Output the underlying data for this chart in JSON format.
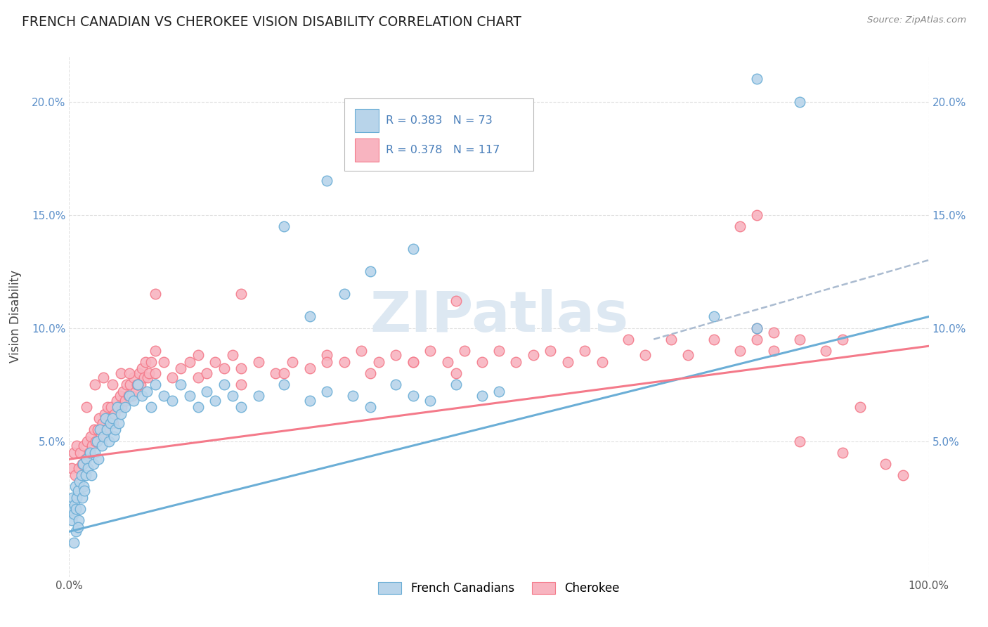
{
  "title": "FRENCH CANADIAN VS CHEROKEE VISION DISABILITY CORRELATION CHART",
  "source": "Source: ZipAtlas.com",
  "ylabel": "Vision Disability",
  "xlim": [
    0,
    100
  ],
  "ylim": [
    -1,
    22
  ],
  "ytick_vals": [
    5,
    10,
    15,
    20
  ],
  "ytick_labels": [
    "5.0%",
    "10.0%",
    "15.0%",
    "20.0%"
  ],
  "color_blue_fill": "#b8d4ea",
  "color_blue_edge": "#6baed6",
  "color_pink_fill": "#f8b4c0",
  "color_pink_edge": "#f47a8a",
  "watermark": "ZIPatlas",
  "blue_line_x": [
    0,
    100
  ],
  "blue_line_y": [
    1.0,
    10.5
  ],
  "pink_line_x": [
    0,
    100
  ],
  "pink_line_y": [
    4.2,
    9.2
  ],
  "dashed_line_x": [
    68,
    100
  ],
  "dashed_line_y": [
    9.5,
    13.0
  ],
  "french_canadian_points": [
    [
      0.2,
      2.0
    ],
    [
      0.3,
      1.5
    ],
    [
      0.4,
      2.5
    ],
    [
      0.5,
      1.8
    ],
    [
      0.6,
      2.2
    ],
    [
      0.7,
      3.0
    ],
    [
      0.8,
      2.0
    ],
    [
      0.9,
      2.5
    ],
    [
      1.0,
      2.8
    ],
    [
      1.1,
      1.5
    ],
    [
      1.2,
      3.2
    ],
    [
      1.3,
      2.0
    ],
    [
      1.4,
      3.5
    ],
    [
      1.5,
      2.5
    ],
    [
      1.6,
      4.0
    ],
    [
      1.7,
      3.0
    ],
    [
      1.8,
      2.8
    ],
    [
      1.9,
      3.5
    ],
    [
      2.0,
      4.2
    ],
    [
      2.2,
      3.8
    ],
    [
      2.4,
      4.5
    ],
    [
      2.6,
      3.5
    ],
    [
      2.8,
      4.0
    ],
    [
      3.0,
      4.5
    ],
    [
      3.2,
      5.0
    ],
    [
      3.4,
      4.2
    ],
    [
      3.6,
      5.5
    ],
    [
      3.8,
      4.8
    ],
    [
      4.0,
      5.2
    ],
    [
      4.2,
      6.0
    ],
    [
      4.4,
      5.5
    ],
    [
      4.6,
      5.0
    ],
    [
      4.8,
      5.8
    ],
    [
      5.0,
      6.0
    ],
    [
      5.2,
      5.2
    ],
    [
      5.4,
      5.5
    ],
    [
      5.6,
      6.5
    ],
    [
      5.8,
      5.8
    ],
    [
      6.0,
      6.2
    ],
    [
      6.5,
      6.5
    ],
    [
      7.0,
      7.0
    ],
    [
      7.5,
      6.8
    ],
    [
      8.0,
      7.5
    ],
    [
      8.5,
      7.0
    ],
    [
      9.0,
      7.2
    ],
    [
      9.5,
      6.5
    ],
    [
      10.0,
      7.5
    ],
    [
      11.0,
      7.0
    ],
    [
      12.0,
      6.8
    ],
    [
      13.0,
      7.5
    ],
    [
      14.0,
      7.0
    ],
    [
      15.0,
      6.5
    ],
    [
      16.0,
      7.2
    ],
    [
      17.0,
      6.8
    ],
    [
      18.0,
      7.5
    ],
    [
      19.0,
      7.0
    ],
    [
      20.0,
      6.5
    ],
    [
      22.0,
      7.0
    ],
    [
      25.0,
      7.5
    ],
    [
      28.0,
      6.8
    ],
    [
      30.0,
      7.2
    ],
    [
      33.0,
      7.0
    ],
    [
      35.0,
      6.5
    ],
    [
      38.0,
      7.5
    ],
    [
      40.0,
      7.0
    ],
    [
      42.0,
      6.8
    ],
    [
      45.0,
      7.5
    ],
    [
      48.0,
      7.0
    ],
    [
      50.0,
      7.2
    ],
    [
      28.0,
      10.5
    ],
    [
      32.0,
      11.5
    ],
    [
      35.0,
      12.5
    ],
    [
      40.0,
      13.5
    ],
    [
      25.0,
      14.5
    ],
    [
      30.0,
      16.5
    ],
    [
      80.0,
      21.0
    ],
    [
      85.0,
      20.0
    ],
    [
      75.0,
      10.5
    ],
    [
      80.0,
      10.0
    ],
    [
      0.5,
      0.5
    ],
    [
      0.8,
      1.0
    ],
    [
      1.0,
      1.2
    ]
  ],
  "cherokee_points": [
    [
      0.3,
      3.8
    ],
    [
      0.5,
      4.5
    ],
    [
      0.7,
      3.5
    ],
    [
      0.9,
      4.8
    ],
    [
      1.1,
      3.8
    ],
    [
      1.3,
      4.5
    ],
    [
      1.5,
      4.0
    ],
    [
      1.7,
      4.8
    ],
    [
      1.9,
      4.2
    ],
    [
      2.1,
      5.0
    ],
    [
      2.3,
      4.5
    ],
    [
      2.5,
      5.2
    ],
    [
      2.7,
      4.8
    ],
    [
      2.9,
      5.5
    ],
    [
      3.1,
      5.0
    ],
    [
      3.3,
      5.5
    ],
    [
      3.5,
      6.0
    ],
    [
      3.7,
      5.2
    ],
    [
      3.9,
      5.8
    ],
    [
      4.1,
      6.2
    ],
    [
      4.3,
      5.5
    ],
    [
      4.5,
      6.5
    ],
    [
      4.7,
      6.0
    ],
    [
      4.9,
      6.5
    ],
    [
      5.1,
      5.8
    ],
    [
      5.3,
      6.2
    ],
    [
      5.5,
      6.8
    ],
    [
      5.7,
      6.5
    ],
    [
      5.9,
      7.0
    ],
    [
      6.1,
      6.5
    ],
    [
      6.3,
      7.2
    ],
    [
      6.5,
      6.8
    ],
    [
      6.7,
      7.5
    ],
    [
      6.9,
      7.0
    ],
    [
      7.1,
      7.5
    ],
    [
      7.3,
      7.0
    ],
    [
      7.5,
      7.8
    ],
    [
      7.7,
      7.2
    ],
    [
      7.9,
      7.5
    ],
    [
      8.1,
      8.0
    ],
    [
      8.3,
      7.5
    ],
    [
      8.5,
      8.2
    ],
    [
      8.7,
      7.8
    ],
    [
      8.9,
      8.5
    ],
    [
      9.1,
      7.8
    ],
    [
      9.3,
      8.0
    ],
    [
      9.5,
      8.5
    ],
    [
      10.0,
      8.0
    ],
    [
      11.0,
      8.5
    ],
    [
      12.0,
      7.8
    ],
    [
      13.0,
      8.2
    ],
    [
      14.0,
      8.5
    ],
    [
      15.0,
      7.8
    ],
    [
      16.0,
      8.0
    ],
    [
      17.0,
      8.5
    ],
    [
      18.0,
      8.2
    ],
    [
      19.0,
      8.8
    ],
    [
      20.0,
      8.2
    ],
    [
      22.0,
      8.5
    ],
    [
      24.0,
      8.0
    ],
    [
      26.0,
      8.5
    ],
    [
      28.0,
      8.2
    ],
    [
      30.0,
      8.8
    ],
    [
      32.0,
      8.5
    ],
    [
      34.0,
      9.0
    ],
    [
      36.0,
      8.5
    ],
    [
      38.0,
      8.8
    ],
    [
      40.0,
      8.5
    ],
    [
      42.0,
      9.0
    ],
    [
      44.0,
      8.5
    ],
    [
      46.0,
      9.0
    ],
    [
      48.0,
      8.5
    ],
    [
      50.0,
      9.0
    ],
    [
      52.0,
      8.5
    ],
    [
      54.0,
      8.8
    ],
    [
      56.0,
      9.0
    ],
    [
      58.0,
      8.5
    ],
    [
      60.0,
      9.0
    ],
    [
      62.0,
      8.5
    ],
    [
      65.0,
      9.5
    ],
    [
      67.0,
      8.8
    ],
    [
      70.0,
      9.5
    ],
    [
      72.0,
      8.8
    ],
    [
      75.0,
      9.5
    ],
    [
      78.0,
      9.0
    ],
    [
      80.0,
      9.5
    ],
    [
      82.0,
      9.0
    ],
    [
      85.0,
      9.5
    ],
    [
      88.0,
      9.0
    ],
    [
      90.0,
      9.5
    ],
    [
      10.0,
      11.5
    ],
    [
      20.0,
      11.5
    ],
    [
      45.0,
      11.2
    ],
    [
      80.0,
      10.0
    ],
    [
      82.0,
      9.8
    ],
    [
      78.0,
      14.5
    ],
    [
      80.0,
      15.0
    ],
    [
      85.0,
      5.0
    ],
    [
      90.0,
      4.5
    ],
    [
      92.0,
      6.5
    ],
    [
      95.0,
      4.0
    ],
    [
      97.0,
      3.5
    ],
    [
      2.0,
      6.5
    ],
    [
      3.0,
      7.5
    ],
    [
      4.0,
      7.8
    ],
    [
      5.0,
      7.5
    ],
    [
      6.0,
      8.0
    ],
    [
      7.0,
      8.0
    ],
    [
      8.0,
      7.5
    ],
    [
      10.0,
      9.0
    ],
    [
      15.0,
      8.8
    ],
    [
      20.0,
      7.5
    ],
    [
      25.0,
      8.0
    ],
    [
      30.0,
      8.5
    ],
    [
      35.0,
      8.0
    ],
    [
      40.0,
      8.5
    ],
    [
      45.0,
      8.0
    ]
  ]
}
